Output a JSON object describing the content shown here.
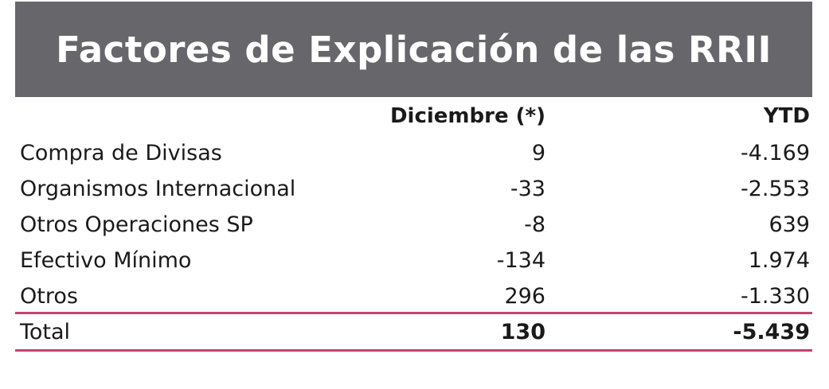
{
  "title": "Factores de Explicación de las RRII",
  "colors": {
    "title_bg": "#67666b",
    "title_fg": "#ffffff",
    "rule": "#c4436c"
  },
  "columns": [
    "",
    "Diciembre (*)",
    "YTD"
  ],
  "rows": [
    {
      "label": "Compra de Divisas",
      "diciembre": "9",
      "ytd": "-4.169"
    },
    {
      "label": "Organismos Internacional",
      "diciembre": "-33",
      "ytd": "-2.553"
    },
    {
      "label": "Otros Operaciones SP",
      "diciembre": "-8",
      "ytd": "639"
    },
    {
      "label": "Efectivo Mínimo",
      "diciembre": "-134",
      "ytd": "1.974"
    },
    {
      "label": "Otros",
      "diciembre": "296",
      "ytd": "-1.330"
    }
  ],
  "total": {
    "label": "Total",
    "diciembre": "130",
    "ytd": "-5.439"
  },
  "chart_data": {
    "type": "table",
    "title": "Factores de Explicación de las RRII",
    "columns": [
      "Diciembre (*)",
      "YTD"
    ],
    "rows": [
      {
        "name": "Compra de Divisas",
        "values": [
          9,
          -4169
        ]
      },
      {
        "name": "Organismos Internacional",
        "values": [
          -33,
          -2553
        ]
      },
      {
        "name": "Otros Operaciones SP",
        "values": [
          -8,
          639
        ]
      },
      {
        "name": "Efectivo Mínimo",
        "values": [
          -134,
          1974
        ]
      },
      {
        "name": "Otros",
        "values": [
          296,
          -1330
        ]
      },
      {
        "name": "Total",
        "values": [
          130,
          -5439
        ]
      }
    ]
  }
}
